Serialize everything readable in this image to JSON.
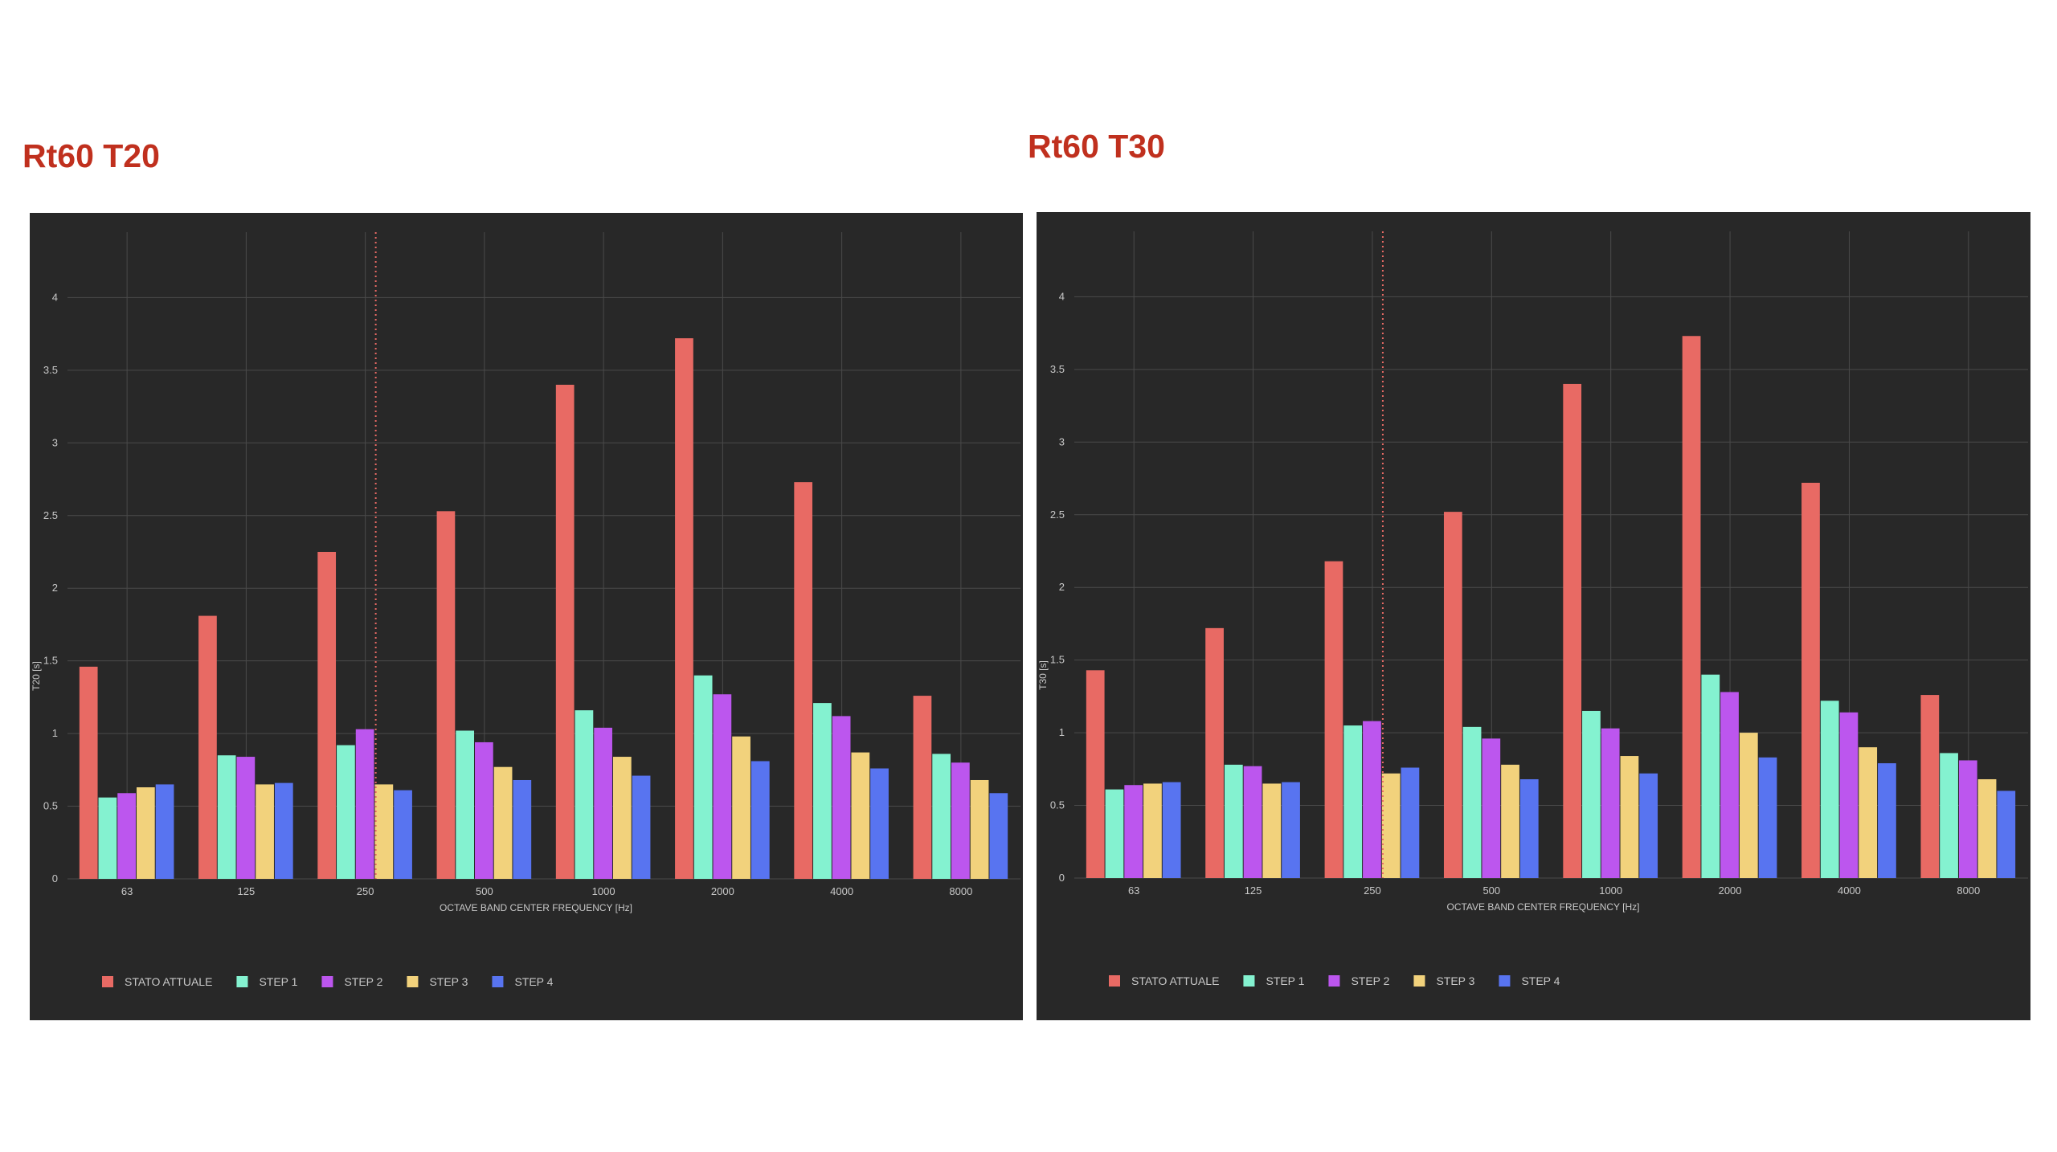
{
  "colors": {
    "background": "#282828",
    "grid": "#4a4a4a",
    "text": "#c8c8c8",
    "heading": "#c0301e",
    "series": [
      "#e86a64",
      "#84f2d0",
      "#bc56ee",
      "#f2d27c",
      "#5874f0"
    ]
  },
  "chart_data": [
    {
      "type": "bar",
      "title": "Rt60 T20",
      "categories": [
        "63",
        "125",
        "250",
        "500",
        "1000",
        "2000",
        "4000",
        "8000"
      ],
      "xlabel": "OCTAVE BAND CENTER FREQUENCY [Hz]",
      "ylabel": "T20 [s]",
      "ylim": [
        0,
        4.45
      ],
      "yticks": [
        "0",
        "0.5",
        "1",
        "1.5",
        "2",
        "2.5",
        "3",
        "3.5",
        "4"
      ],
      "grid": true,
      "legend_position": "bottom-left",
      "series": [
        {
          "name": "STATO ATTUALE",
          "values": [
            1.46,
            1.81,
            2.25,
            2.53,
            3.4,
            3.72,
            2.73,
            1.26
          ]
        },
        {
          "name": "STEP 1",
          "values": [
            0.56,
            0.85,
            0.92,
            1.02,
            1.16,
            1.4,
            1.21,
            0.86
          ]
        },
        {
          "name": "STEP 2",
          "values": [
            0.59,
            0.84,
            1.03,
            0.94,
            1.04,
            1.27,
            1.12,
            0.8
          ]
        },
        {
          "name": "STEP 3",
          "values": [
            0.63,
            0.65,
            0.65,
            0.77,
            0.84,
            0.98,
            0.87,
            0.68
          ]
        },
        {
          "name": "STEP 4",
          "values": [
            0.65,
            0.66,
            0.61,
            0.68,
            0.71,
            0.81,
            0.76,
            0.59
          ]
        }
      ]
    },
    {
      "type": "bar",
      "title": "Rt60 T30",
      "categories": [
        "63",
        "125",
        "250",
        "500",
        "1000",
        "2000",
        "4000",
        "8000"
      ],
      "xlabel": "OCTAVE BAND CENTER FREQUENCY [Hz]",
      "ylabel": "T30 [s]",
      "ylim": [
        0,
        4.45
      ],
      "yticks": [
        "0",
        "0.5",
        "1",
        "1.5",
        "2",
        "2.5",
        "3",
        "3.5",
        "4"
      ],
      "grid": true,
      "legend_position": "bottom-left",
      "series": [
        {
          "name": "STATO ATTUALE",
          "values": [
            1.43,
            1.72,
            2.18,
            2.52,
            3.4,
            3.73,
            2.72,
            1.26
          ]
        },
        {
          "name": "STEP 1",
          "values": [
            0.61,
            0.78,
            1.05,
            1.04,
            1.15,
            1.4,
            1.22,
            0.86
          ]
        },
        {
          "name": "STEP 2",
          "values": [
            0.64,
            0.77,
            1.08,
            0.96,
            1.03,
            1.28,
            1.14,
            0.81
          ]
        },
        {
          "name": "STEP 3",
          "values": [
            0.65,
            0.65,
            0.72,
            0.78,
            0.84,
            1.0,
            0.9,
            0.68
          ]
        },
        {
          "name": "STEP 4",
          "values": [
            0.66,
            0.66,
            0.76,
            0.68,
            0.72,
            0.83,
            0.79,
            0.6
          ]
        }
      ]
    }
  ]
}
